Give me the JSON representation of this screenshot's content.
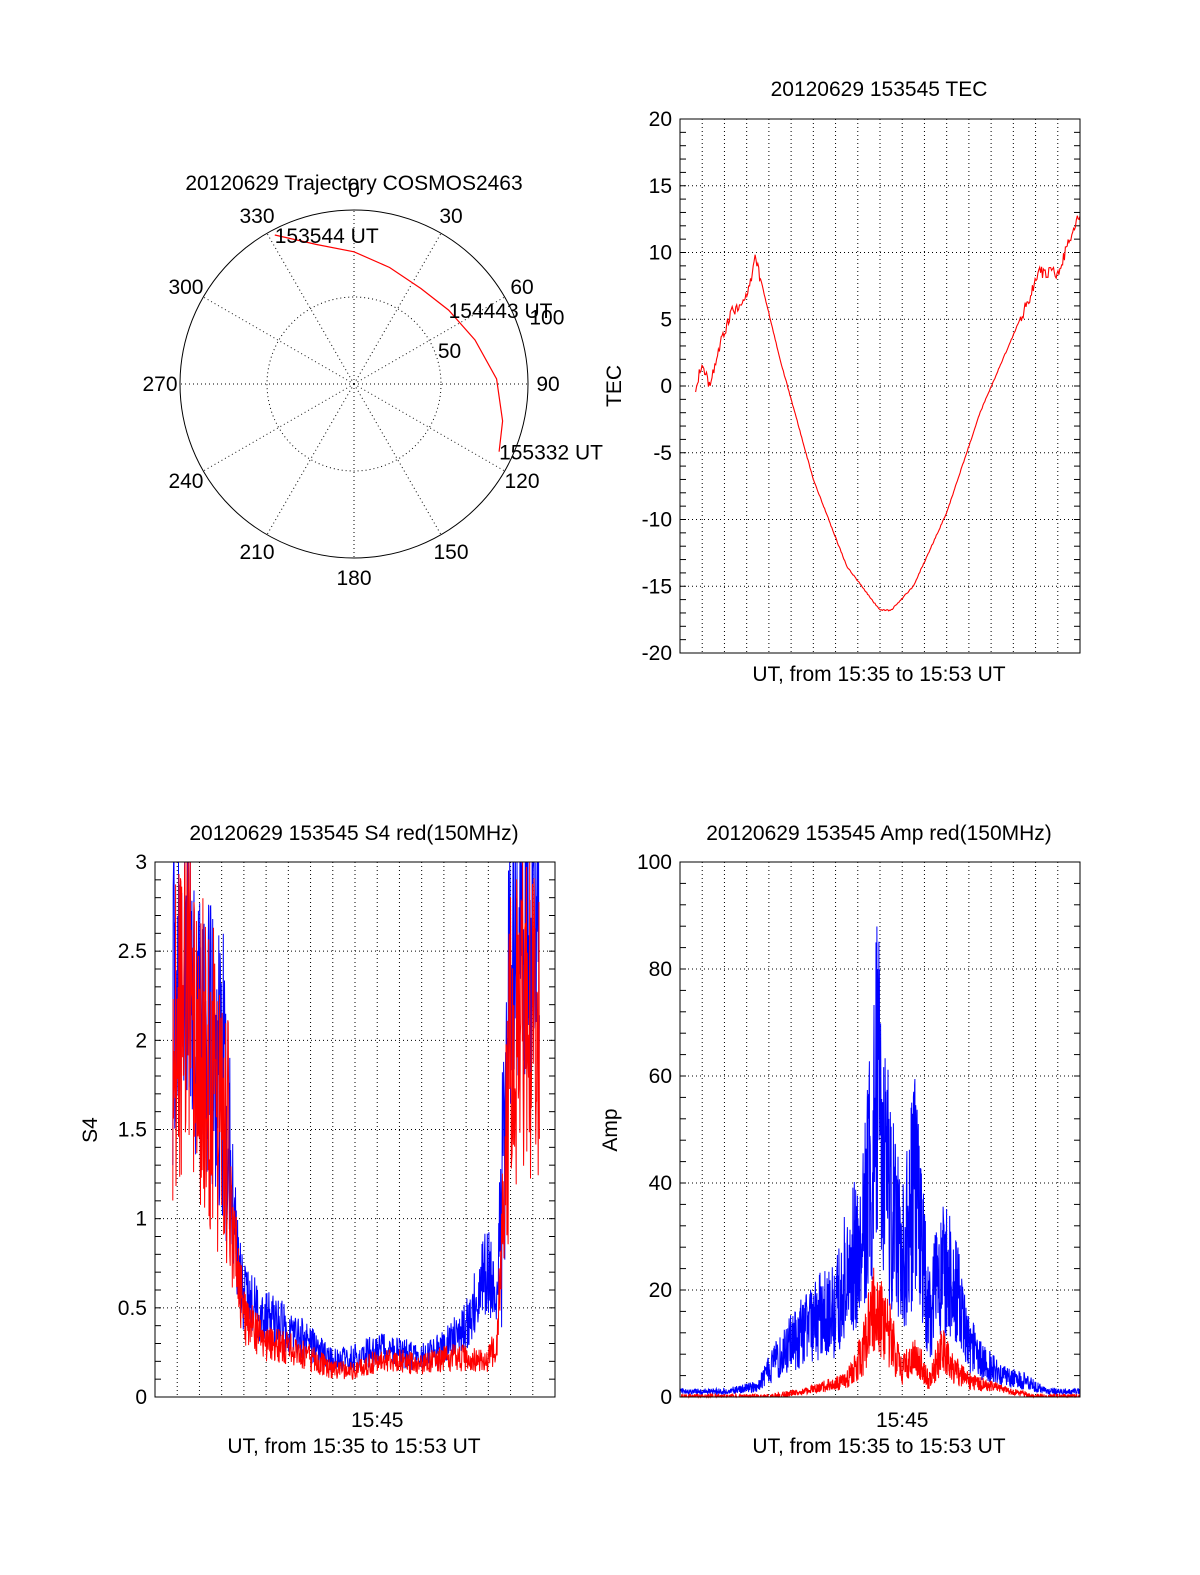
{
  "colors": {
    "red_series": "#ff0000",
    "blue_series": "#0000ff",
    "axes": "#000000",
    "background": "#ffffff"
  },
  "chart_data": [
    {
      "type": "polar",
      "title": "20120629 Trajectory COSMOS2463",
      "angle_labels": [
        "0",
        "30",
        "60",
        "90",
        "120",
        "150",
        "180",
        "210",
        "240",
        "270",
        "300",
        "330"
      ],
      "radius_labels": [
        "50",
        "100"
      ],
      "rlim": [
        0,
        100
      ],
      "grid": true,
      "series": [
        {
          "color": "red",
          "points": [
            {
              "azimuth": 332,
              "zenith": 97
            },
            {
              "azimuth": 345,
              "zenith": 83
            },
            {
              "azimuth": 0,
              "zenith": 76
            },
            {
              "azimuth": 17,
              "zenith": 70
            },
            {
              "azimuth": 35,
              "zenith": 67
            },
            {
              "azimuth": 52,
              "zenith": 69
            },
            {
              "azimuth": 70,
              "zenith": 74
            },
            {
              "azimuth": 88,
              "zenith": 82
            },
            {
              "azimuth": 104,
              "zenith": 88
            },
            {
              "azimuth": 115,
              "zenith": 92
            }
          ]
        }
      ],
      "annotations": [
        {
          "text": "153544 UT",
          "azimuth": 332,
          "zenith": 97
        },
        {
          "text": "154443 UT",
          "azimuth": 52,
          "zenith": 69
        },
        {
          "text": "155332 UT",
          "azimuth": 115,
          "zenith": 92
        }
      ]
    },
    {
      "type": "line",
      "title": "20120629 153545 TEC",
      "xlabel": "UT, from 15:35 to 15:53 UT",
      "ylabel": "TEC",
      "xlim": [
        0,
        18
      ],
      "ylim": [
        -20,
        20
      ],
      "yticks": [
        "20",
        "15",
        "10",
        "5",
        "0",
        "-5",
        "-10",
        "-15",
        "-20"
      ],
      "xticks": [],
      "grid": true,
      "series": [
        {
          "color": "red",
          "x": [
            0.7,
            1.0,
            1.3,
            1.7,
            2.3,
            3.0,
            3.4,
            3.7,
            4.5,
            6.0,
            7.5,
            9.0,
            9.5,
            10.5,
            12.0,
            13.5,
            15.3,
            16.2,
            17.0,
            18.0
          ],
          "y": [
            0.0,
            1.8,
            0.0,
            2.5,
            5.5,
            6.5,
            9.7,
            7.5,
            2.0,
            -7.0,
            -13.5,
            -16.8,
            -16.8,
            -15.0,
            -9.5,
            -2.0,
            5.0,
            8.5,
            8.5,
            13.0
          ]
        }
      ]
    },
    {
      "type": "line",
      "title": "20120629 153545 S4 red(150MHz)",
      "xlabel": "UT, from 15:35 to 15:53 UT",
      "ylabel": "S4",
      "xlim": [
        0,
        18
      ],
      "ylim": [
        0,
        3
      ],
      "yticks": [
        "3",
        "2.5",
        "2",
        "1.5",
        "1",
        "0.5",
        "0"
      ],
      "xticks": [
        "15:45"
      ],
      "grid": true,
      "series": [
        {
          "color": "blue",
          "x": [
            0.8,
            1.6,
            2.4,
            3.1,
            3.5,
            4.0,
            5.0,
            6.0,
            7.0,
            8.0,
            9.0,
            10.0,
            11.0,
            12.0,
            13.0,
            14.0,
            14.9,
            15.4,
            16.0,
            16.6,
            17.3
          ],
          "y": [
            2.2,
            2.4,
            1.9,
            1.7,
            1.1,
            0.55,
            0.45,
            0.38,
            0.3,
            0.2,
            0.22,
            0.27,
            0.25,
            0.22,
            0.28,
            0.4,
            0.7,
            0.65,
            2.4,
            2.6,
            2.3
          ]
        },
        {
          "color": "red",
          "x": [
            0.8,
            1.6,
            2.4,
            3.1,
            3.5,
            4.0,
            5.0,
            6.0,
            7.0,
            8.0,
            9.0,
            10.0,
            11.0,
            12.0,
            13.0,
            14.0,
            14.9,
            15.4,
            16.0,
            16.6,
            17.3
          ],
          "y": [
            2.0,
            2.2,
            1.8,
            1.6,
            0.9,
            0.45,
            0.3,
            0.27,
            0.22,
            0.15,
            0.15,
            0.2,
            0.2,
            0.18,
            0.22,
            0.22,
            0.2,
            0.3,
            2.0,
            2.2,
            2.0
          ]
        }
      ]
    },
    {
      "type": "line",
      "title": "20120629 153545 Amp red(150MHz)",
      "xlabel": "UT, from 15:35 to 15:53 UT",
      "ylabel": "Amp",
      "xlim": [
        0,
        18
      ],
      "ylim": [
        0,
        100
      ],
      "yticks": [
        "100",
        "80",
        "60",
        "40",
        "20",
        "0"
      ],
      "xticks": [
        "15:45"
      ],
      "grid": true,
      "series": [
        {
          "color": "blue",
          "x": [
            0.0,
            2.0,
            3.5,
            4.5,
            5.5,
            6.3,
            7.0,
            7.6,
            8.2,
            8.9,
            9.4,
            10.0,
            10.6,
            11.2,
            11.8,
            12.4,
            13.0,
            13.8,
            14.5,
            15.5,
            16.5,
            18.0
          ],
          "y": [
            1,
            1,
            2,
            8,
            12,
            15,
            16,
            25,
            28,
            60,
            38,
            25,
            40,
            15,
            25,
            20,
            10,
            6,
            4,
            3,
            1,
            1
          ]
        },
        {
          "color": "red",
          "x": [
            0.0,
            4.0,
            5.5,
            6.5,
            7.5,
            8.2,
            8.8,
            9.4,
            10.0,
            10.6,
            11.2,
            11.8,
            12.4,
            13.0,
            14.0,
            15.0,
            16.0,
            18.0
          ],
          "y": [
            0,
            0,
            1,
            2,
            3,
            8,
            18,
            12,
            5,
            8,
            3,
            9,
            5,
            3,
            2,
            1,
            0,
            0
          ]
        }
      ]
    }
  ]
}
